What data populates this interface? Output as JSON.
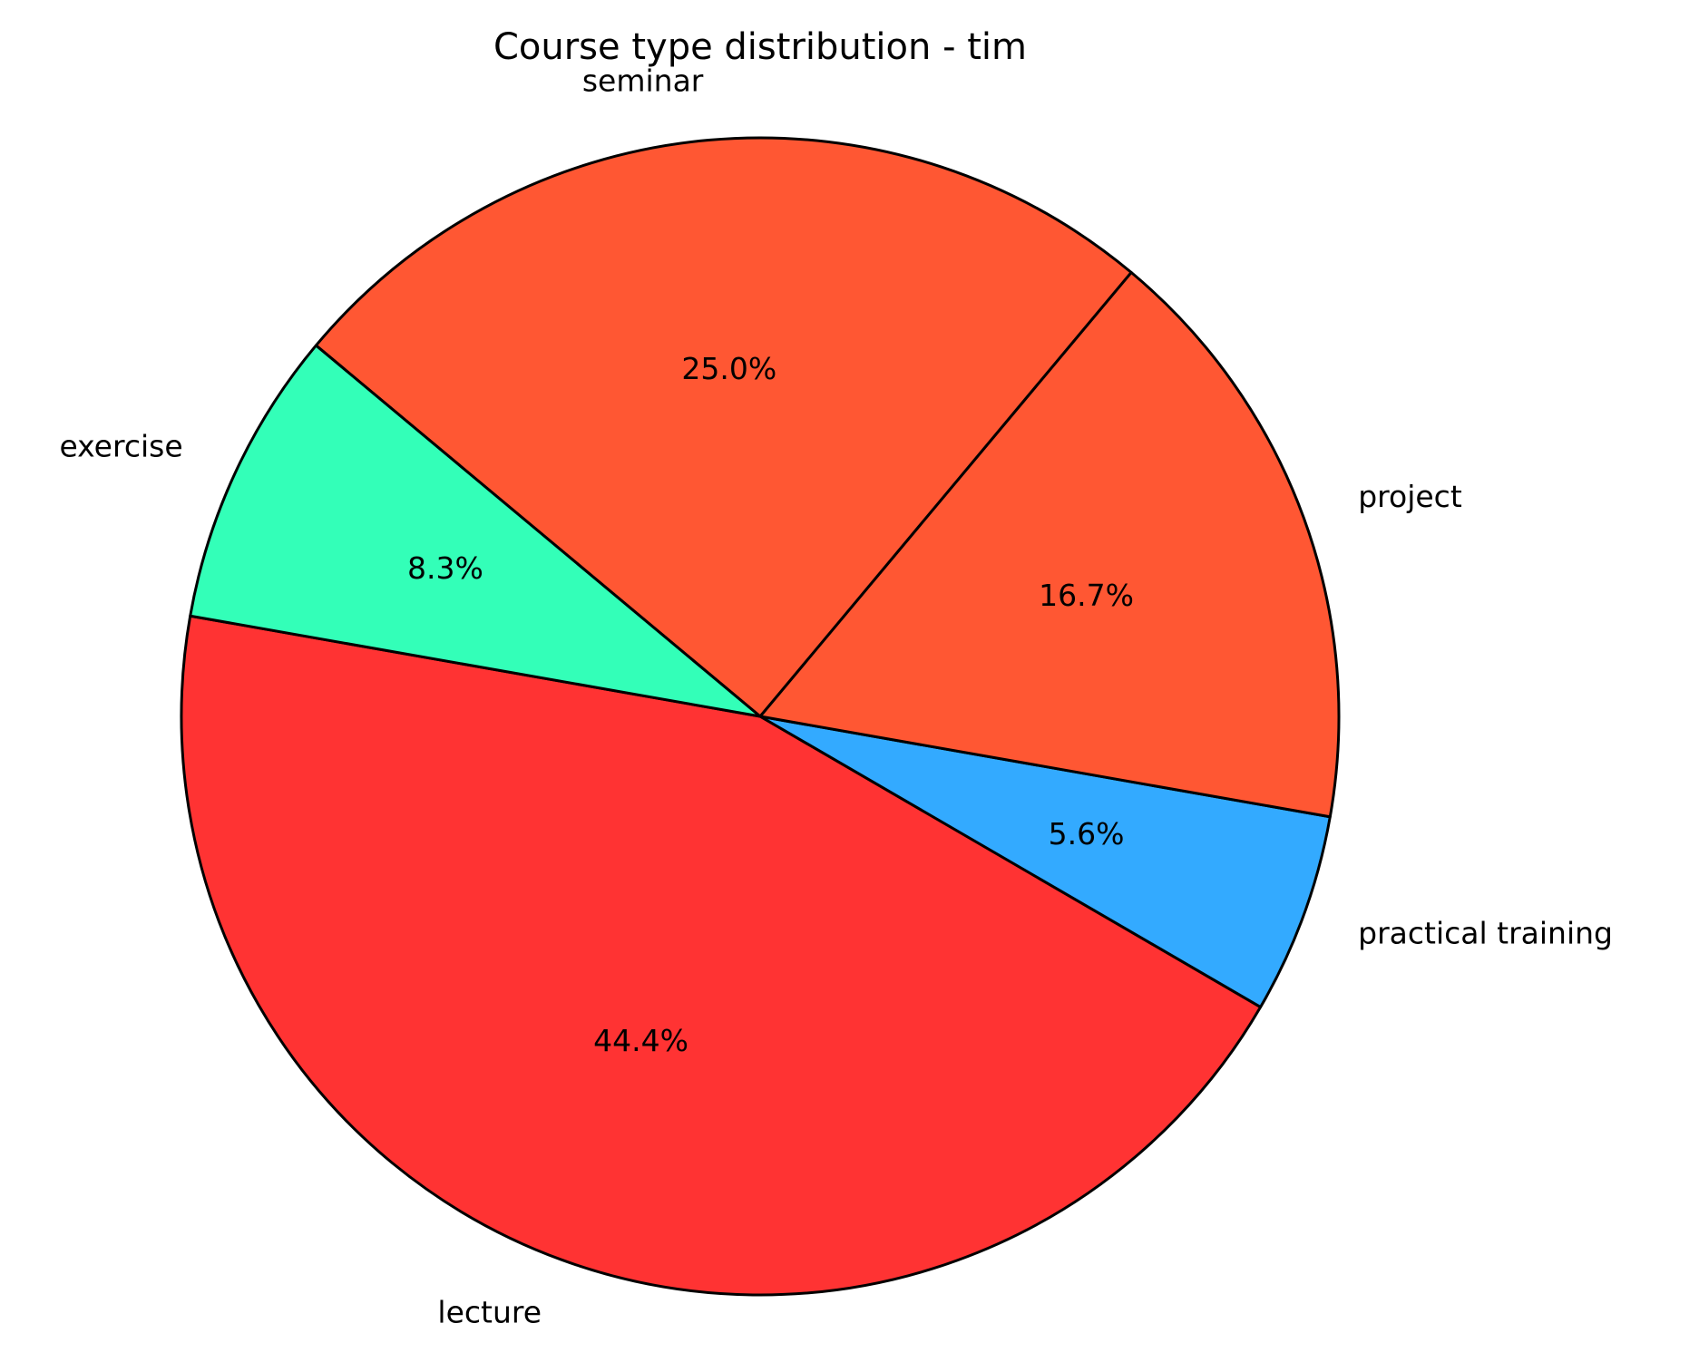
{
  "chart_data": {
    "type": "pie",
    "title": "Course type distribution - tim",
    "categories": [
      "lecture",
      "practical training",
      "project",
      "seminar",
      "exercise"
    ],
    "values": [
      44.4,
      5.6,
      16.7,
      25.0,
      8.3
    ],
    "value_labels": [
      "44.4%",
      "5.6%",
      "16.7%",
      "25.0%",
      "8.3%"
    ],
    "colors": [
      "#ff3333",
      "#33aaff",
      "#ff5733",
      "#ff5733",
      "#33ffb8"
    ]
  }
}
